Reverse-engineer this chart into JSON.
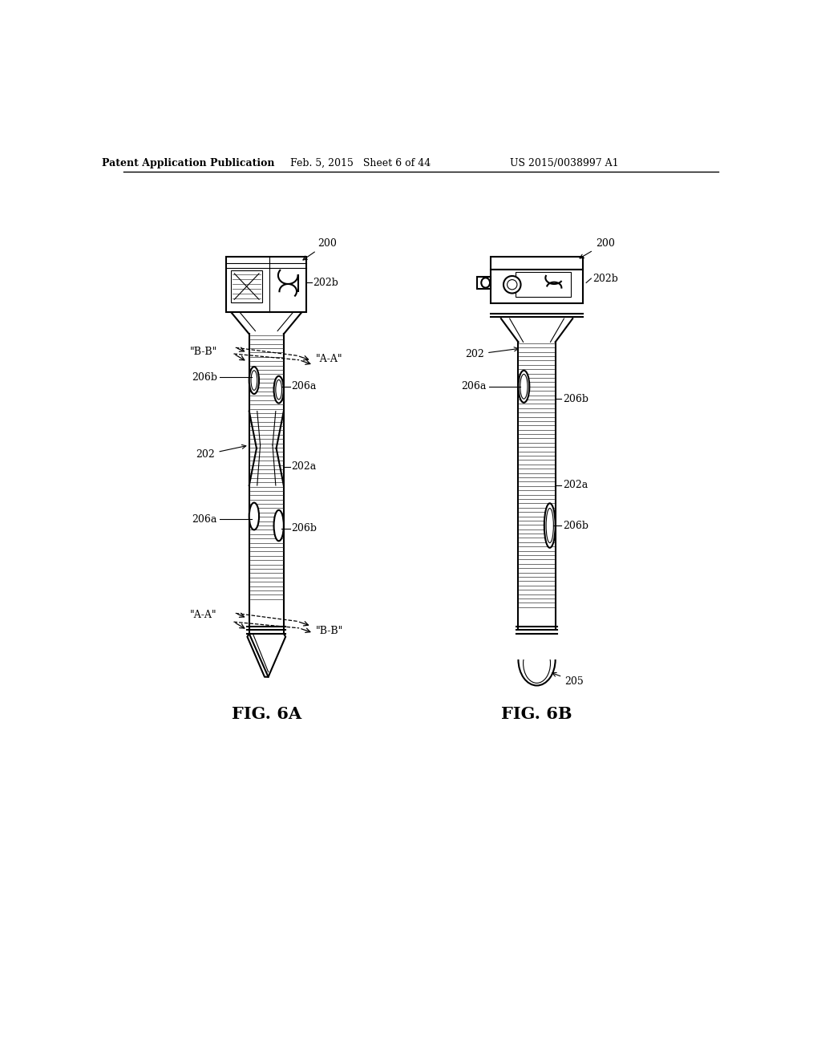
{
  "background_color": "#ffffff",
  "header_left": "Patent Application Publication",
  "header_mid": "Feb. 5, 2015   Sheet 6 of 44",
  "header_right": "US 2015/0038997 A1",
  "fig6a_label": "FIG. 6A",
  "fig6b_label": "FIG. 6B",
  "line_color": "#000000",
  "lw": 1.5,
  "tlw": 0.8,
  "text_color": "#000000",
  "header_fontsize": 9,
  "fig_label_fontsize": 15,
  "annot_fontsize": 9
}
